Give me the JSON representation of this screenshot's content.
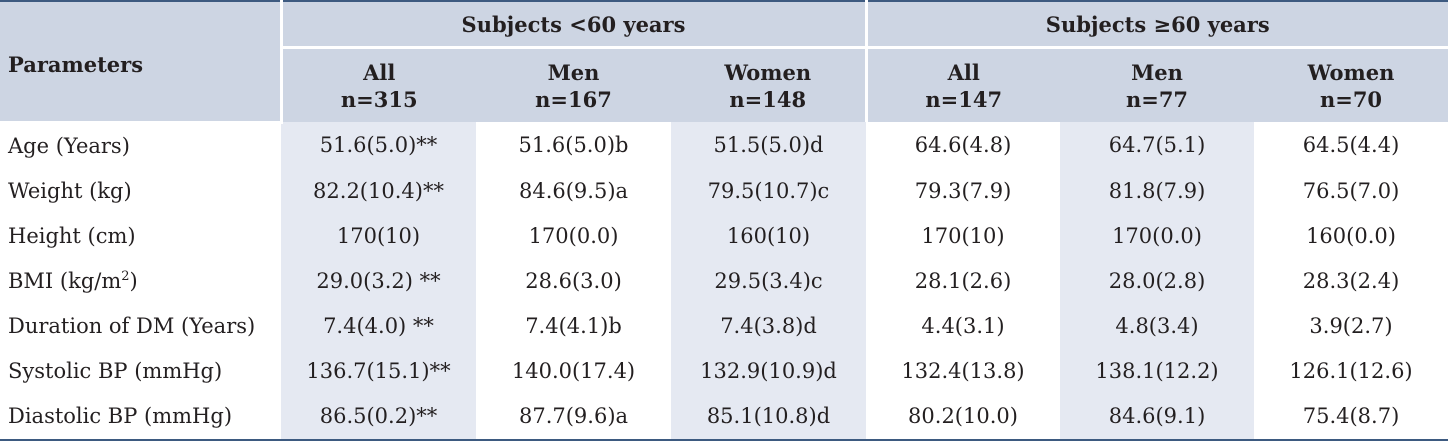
{
  "table": {
    "header": {
      "parameters": "Parameters",
      "groups": [
        "Subjects <60 years",
        "Subjects ≥60 years"
      ],
      "subgroups": [
        {
          "label": "All",
          "n": "n=315"
        },
        {
          "label": "Men",
          "n": "n=167"
        },
        {
          "label": "Women",
          "n": "n=148"
        },
        {
          "label": "All",
          "n": "n=147"
        },
        {
          "label": "Men",
          "n": "n=77"
        },
        {
          "label": "Women",
          "n": "n=70"
        }
      ]
    },
    "rows": [
      {
        "label": "Age (Years)",
        "cells": [
          "51.6(5.0)**",
          "51.6(5.0)b",
          "51.5(5.0)d",
          "64.6(4.8)",
          "64.7(5.1)",
          "64.5(4.4)"
        ]
      },
      {
        "label": "Weight (kg)",
        "cells": [
          "82.2(10.4)**",
          "84.6(9.5)a",
          "79.5(10.7)c",
          "79.3(7.9)",
          "81.8(7.9)",
          "76.5(7.0)"
        ]
      },
      {
        "label": "Height (cm)",
        "cells": [
          "170(10)",
          "170(0.0)",
          "160(10)",
          "170(10)",
          "170(0.0)",
          "160(0.0)"
        ]
      },
      {
        "label": "BMI (kg/m",
        "label_sup": "2",
        "label_end": ")",
        "cells": [
          "29.0(3.2) **",
          "28.6(3.0)",
          "29.5(3.4)c",
          "28.1(2.6)",
          "28.0(2.8)",
          "28.3(2.4)"
        ]
      },
      {
        "label": "Duration of DM (Years)",
        "cells": [
          "7.4(4.0) **",
          "7.4(4.1)b",
          "7.4(3.8)d",
          "4.4(3.1)",
          "4.8(3.4)",
          "3.9(2.7)"
        ]
      },
      {
        "label": "Systolic BP (mmHg)",
        "cells": [
          "136.7(15.1)**",
          "140.0(17.4)",
          "132.9(10.9)d",
          "132.4(13.8)",
          "138.1(12.2)",
          "126.1(12.6)"
        ]
      },
      {
        "label": "Diastolic BP (mmHg)",
        "cells": [
          "86.5(0.2)**",
          "87.7(9.6)a",
          "85.1(10.8)d",
          "80.2(10.0)",
          "84.6(9.1)",
          "75.4(8.7)"
        ]
      }
    ]
  }
}
